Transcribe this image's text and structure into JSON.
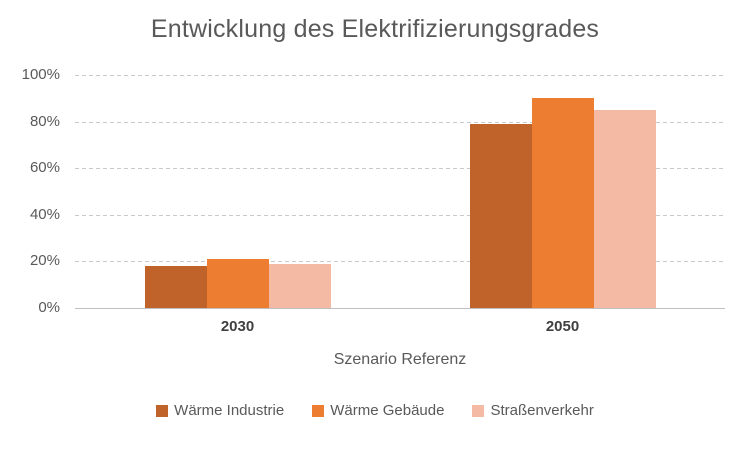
{
  "chart_data": {
    "type": "bar",
    "title": "Entwicklung des Elektrifizierungsgrades",
    "xlabel": "Szenario Referenz",
    "ylabel": "",
    "categories": [
      "2030",
      "2050"
    ],
    "series": [
      {
        "name": "Wärme Industrie",
        "color": "#C0632B",
        "values": [
          18,
          79
        ]
      },
      {
        "name": "Wärme Gebäude",
        "color": "#ED7D31",
        "values": [
          21,
          90
        ]
      },
      {
        "name": "Straßenverkehr",
        "color": "#F4BAA4",
        "values": [
          19,
          85
        ]
      }
    ],
    "ylim": [
      0,
      100
    ],
    "ytick_values": [
      0,
      20,
      40,
      60,
      80,
      100
    ],
    "ytick_labels": [
      "0%",
      "20%",
      "40%",
      "60%",
      "80%",
      "100%"
    ],
    "grid": "horizontal-dashed",
    "legend_position": "bottom"
  },
  "colors": {
    "background": "#FFFFFF",
    "title_text": "#595959",
    "axis_text": "#595959",
    "category_text": "#404040",
    "gridline": "#C9C9C9",
    "axis_line": "#BFBFBF"
  }
}
